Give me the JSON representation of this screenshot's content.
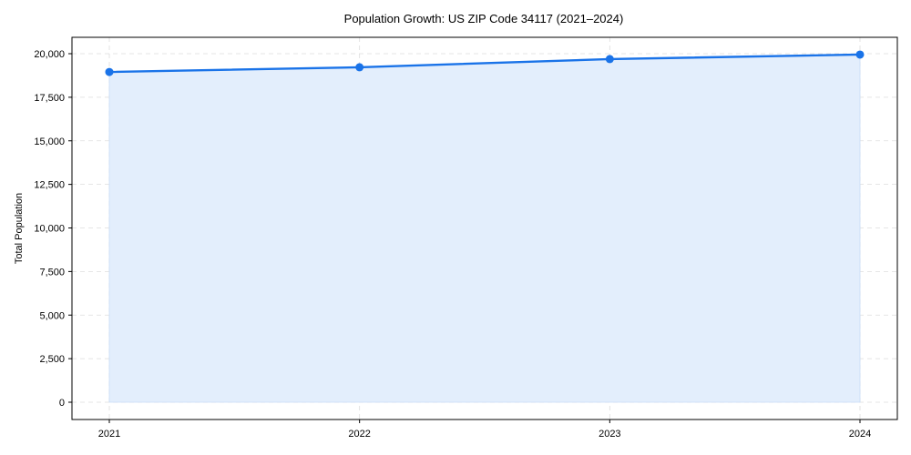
{
  "chart_data": {
    "type": "area",
    "title": "Population Growth: US ZIP Code 34117 (2021–2024)",
    "xlabel": "",
    "ylabel": "Total Population",
    "categories": [
      "2021",
      "2022",
      "2023",
      "2024"
    ],
    "series": [
      {
        "name": "Total Population",
        "values": [
          18950,
          19220,
          19690,
          19950
        ]
      }
    ],
    "ylim": [
      -1000,
      21000
    ],
    "yticks": [
      0,
      2500,
      5000,
      7500,
      10000,
      12500,
      15000,
      17500,
      20000
    ],
    "ytick_labels": [
      "0",
      "2,500",
      "5,000",
      "7,500",
      "10,000",
      "12,500",
      "15,000",
      "17,500",
      "20,000"
    ],
    "grid": true,
    "legend": null,
    "colors": {
      "line": "#1a73e8",
      "fill": "#e3eefc",
      "grid": "#dddddd",
      "axis": "#000000"
    }
  }
}
